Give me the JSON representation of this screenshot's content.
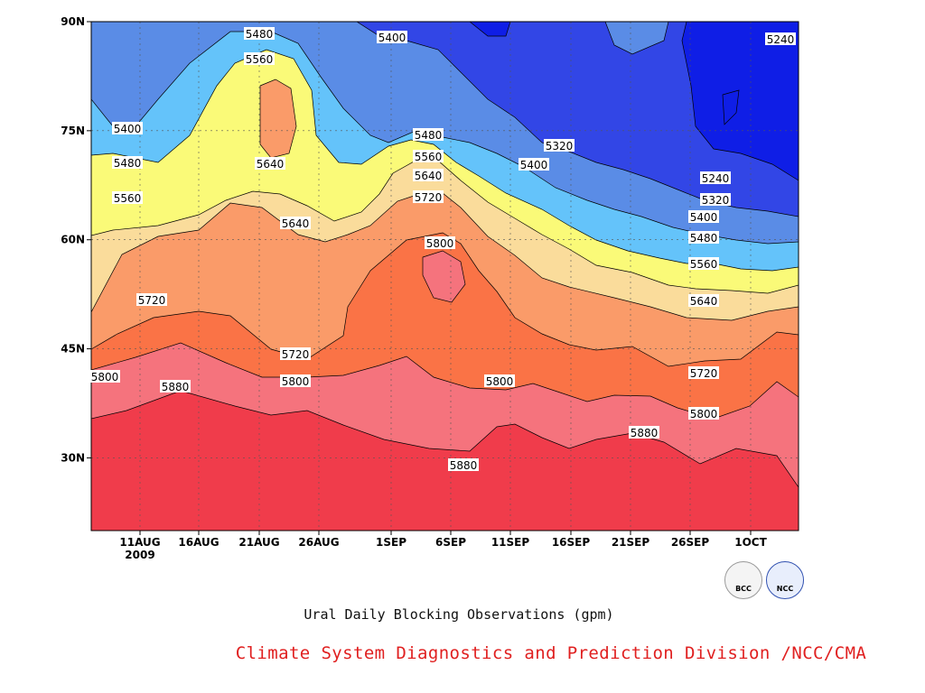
{
  "chart_data": {
    "type": "contour",
    "title": "Ural Daily Blocking Observations (gpm)",
    "credit": "Climate System Diagnostics and Prediction Division /NCC/CMA",
    "x_ticks": [
      "11AUG",
      "16AUG",
      "21AUG",
      "26AUG",
      "1SEP",
      "6SEP",
      "11SEP",
      "16SEP",
      "21SEP",
      "26SEP",
      "1OCT"
    ],
    "x_year": "2009",
    "y_ticks": [
      "30N",
      "45N",
      "60N",
      "75N",
      "90N"
    ],
    "y_values": [
      30,
      45,
      60,
      75,
      90
    ],
    "ylim": [
      20,
      90
    ],
    "grid": true,
    "levels": [
      5240,
      5320,
      5400,
      5480,
      5560,
      5640,
      5720,
      5800,
      5880
    ],
    "fill_colors": [
      "#0f1ee6",
      "#3246e6",
      "#5a8ce6",
      "#64c3fa",
      "#fafa78",
      "#fadc9b",
      "#fa9b69",
      "#fa7346",
      "#f5737d",
      "#f03c4b"
    ],
    "contour_labels": [
      {
        "text": "5480"
      },
      {
        "text": "5560"
      },
      {
        "text": "5400"
      },
      {
        "text": "5240"
      },
      {
        "text": "5400"
      },
      {
        "text": "5480"
      },
      {
        "text": "5640"
      },
      {
        "text": "5560"
      },
      {
        "text": "5560"
      },
      {
        "text": "5640"
      },
      {
        "text": "5720"
      },
      {
        "text": "5800"
      },
      {
        "text": "5800"
      },
      {
        "text": "5880"
      },
      {
        "text": "5800"
      },
      {
        "text": "5880"
      },
      {
        "text": "5720"
      },
      {
        "text": "5480"
      },
      {
        "text": "5560"
      },
      {
        "text": "5640"
      },
      {
        "text": "5720"
      },
      {
        "text": "5800"
      },
      {
        "text": "5320"
      },
      {
        "text": "5400"
      },
      {
        "text": "5240"
      },
      {
        "text": "5320"
      },
      {
        "text": "5400"
      },
      {
        "text": "5480"
      },
      {
        "text": "5560"
      },
      {
        "text": "5640"
      },
      {
        "text": "5720"
      },
      {
        "text": "5800"
      },
      {
        "text": "5880"
      }
    ]
  },
  "logos": {
    "bcc": "BCC",
    "ncc": "NCC"
  }
}
